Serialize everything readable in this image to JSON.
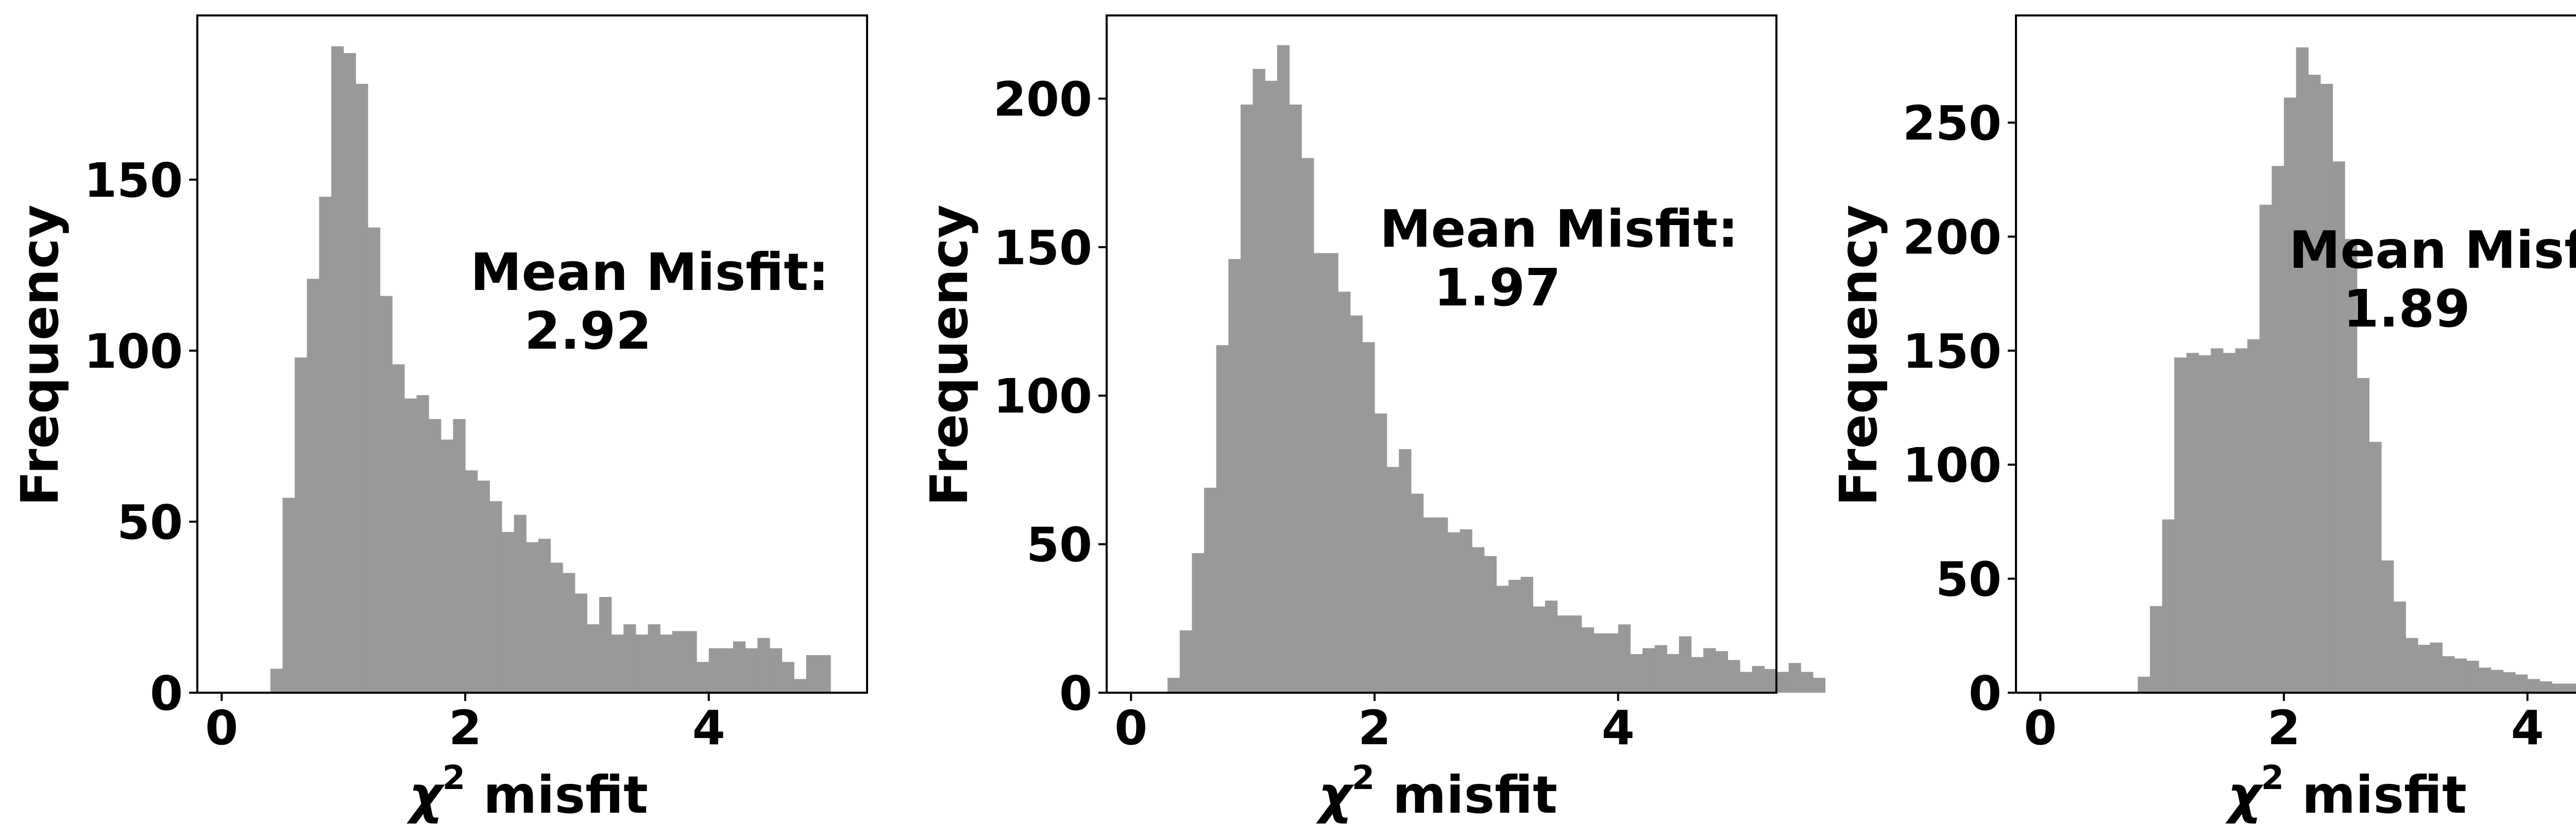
{
  "chart_data": [
    {
      "type": "bar",
      "xlabel": "misfit",
      "xlabel_symbol": "χ",
      "xlabel_sup": "2",
      "ylabel": "Frequency",
      "xlim": [
        -0.2,
        5.3
      ],
      "ylim": [
        0,
        198
      ],
      "xticks": [
        0,
        2,
        4
      ],
      "yticks": [
        0,
        50,
        100,
        150
      ],
      "bin_start": 0.0,
      "bin_width": 0.1,
      "values": [
        0,
        0,
        0,
        0,
        7,
        57,
        98,
        121,
        145,
        189,
        187,
        178,
        136,
        116,
        96,
        86,
        87,
        80,
        74,
        80,
        65,
        62,
        56,
        47,
        52,
        44,
        45,
        38,
        35,
        29,
        20,
        28,
        17,
        20,
        17,
        20,
        17,
        18,
        18,
        9,
        13,
        13,
        15,
        13,
        16,
        13,
        9,
        4,
        11,
        11
      ],
      "bar_color": "#999999",
      "annotation": {
        "line1": "Mean Misfit:",
        "line2": "2.92"
      }
    },
    {
      "type": "bar",
      "xlabel": "misfit",
      "xlabel_symbol": "χ",
      "xlabel_sup": "2",
      "ylabel": "Frequency",
      "xlim": [
        -0.2,
        5.3
      ],
      "ylim": [
        0,
        228
      ],
      "xticks": [
        0,
        2,
        4
      ],
      "yticks": [
        0,
        50,
        100,
        150,
        200
      ],
      "bin_start": 0.0,
      "bin_width": 0.1,
      "values": [
        0,
        0,
        0,
        5,
        21,
        47,
        69,
        117,
        146,
        198,
        210,
        206,
        218,
        198,
        180,
        148,
        148,
        135,
        127,
        118,
        94,
        76,
        82,
        67,
        59,
        59,
        54,
        55,
        49,
        46,
        36,
        38,
        39,
        29,
        31,
        26,
        26,
        22,
        20,
        20,
        23,
        13,
        15,
        16,
        13,
        19,
        12,
        15,
        14,
        11,
        7,
        9,
        8,
        7,
        10,
        7,
        5
      ],
      "bar_color": "#999999",
      "annotation": {
        "line1": "Mean Misfit:",
        "line2": "1.97"
      }
    },
    {
      "type": "bar",
      "xlabel": "misfit",
      "xlabel_symbol": "χ",
      "xlabel_sup": "2",
      "ylabel": "Frequency",
      "xlim": [
        -0.2,
        5.3
      ],
      "ylim": [
        0,
        297
      ],
      "xticks": [
        0,
        2,
        4
      ],
      "yticks": [
        0,
        50,
        100,
        150,
        200,
        250
      ],
      "bin_start": 0.0,
      "bin_width": 0.1,
      "values": [
        0,
        0,
        0,
        0,
        0,
        0,
        0,
        0,
        7,
        38,
        76,
        147,
        149,
        148,
        151,
        149,
        151,
        155,
        214,
        231,
        261,
        283,
        271,
        267,
        233,
        199,
        138,
        110,
        58,
        40,
        24,
        21,
        22,
        16,
        15,
        14,
        11,
        10,
        9,
        8,
        6,
        5,
        4,
        4,
        3,
        3,
        2,
        2,
        1,
        1
      ],
      "bar_color": "#999999",
      "annotation": {
        "line1": "Mean Misfit:",
        "line2": "1.89"
      }
    }
  ]
}
